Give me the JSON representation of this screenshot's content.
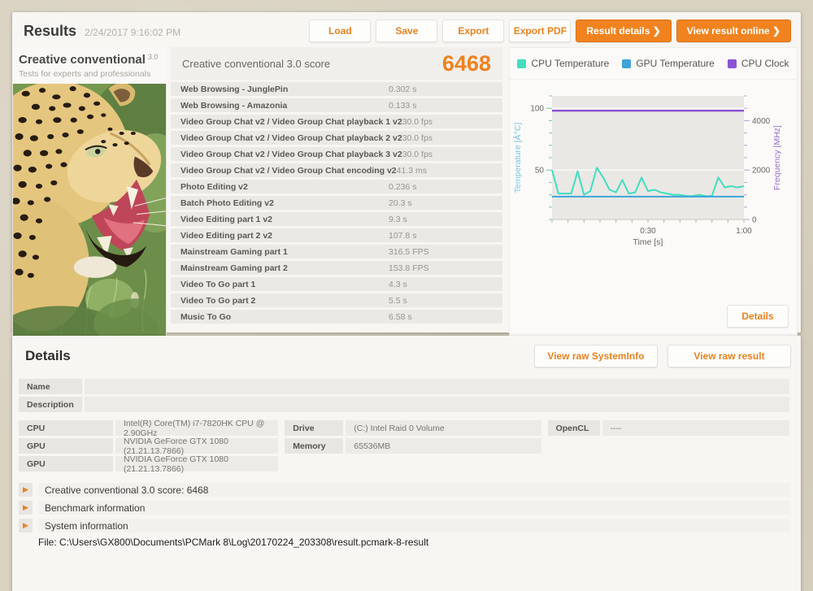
{
  "header": {
    "title": "Results",
    "date": "2/24/2017 9:16:02 PM",
    "buttons": [
      {
        "label": "Load",
        "variant": "light"
      },
      {
        "label": "Save",
        "variant": "light"
      },
      {
        "label": "Export",
        "variant": "light"
      },
      {
        "label": "Export PDF",
        "variant": "light"
      },
      {
        "label": "Result details ❯",
        "variant": "primary"
      },
      {
        "label": "View result online ❯",
        "variant": "primary"
      }
    ]
  },
  "test_panel": {
    "name": "Creative conventional",
    "version": "3.0",
    "subtitle": "Tests for experts and professionals"
  },
  "score_panel": {
    "title": "Creative conventional 3.0 score",
    "score": "6468",
    "rows": [
      {
        "label": "Web Browsing - JunglePin",
        "value": "0.302 s"
      },
      {
        "label": "Web Browsing - Amazonia",
        "value": "0.133 s"
      },
      {
        "label": "Video Group Chat v2 / Video Group Chat playback 1 v2",
        "value": "30.0 fps"
      },
      {
        "label": "Video Group Chat v2 / Video Group Chat playback 2 v2",
        "value": "30.0 fps"
      },
      {
        "label": "Video Group Chat v2 / Video Group Chat playback 3 v2",
        "value": "30.0 fps"
      },
      {
        "label": "Video Group Chat v2 / Video Group Chat encoding v2",
        "value": "41.3 ms"
      },
      {
        "label": "Photo Editing v2",
        "value": "0.236 s"
      },
      {
        "label": "Batch Photo Editing v2",
        "value": "20.3 s"
      },
      {
        "label": "Video Editing part 1 v2",
        "value": "9.3 s"
      },
      {
        "label": "Video Editing part 2 v2",
        "value": "107.8 s"
      },
      {
        "label": "Mainstream Gaming part 1",
        "value": "316.5 FPS"
      },
      {
        "label": "Mainstream Gaming part 2",
        "value": "153.8 FPS"
      },
      {
        "label": "Video To Go part 1",
        "value": "4.3 s"
      },
      {
        "label": "Video To Go part 2",
        "value": "5.5 s"
      },
      {
        "label": "Music To Go",
        "value": "6.58 s"
      }
    ]
  },
  "chart_panel": {
    "details_button": "Details"
  },
  "chart_data": {
    "type": "line",
    "xlabel": "Time [s]",
    "x_range": [
      0,
      60
    ],
    "x_ticks": [
      {
        "value": 30,
        "label": "0:30"
      },
      {
        "value": 60,
        "label": "1:00"
      }
    ],
    "x_minor_step": 5,
    "y_left": {
      "label": "Temperature [Â°C]",
      "range": [
        10,
        110
      ],
      "ticks": [
        50,
        100
      ],
      "minor_step": 10,
      "label_color": "#74c6e6",
      "tick_color": "#6cc9b0"
    },
    "y_right": {
      "label": "Frequency [MHz]",
      "range": [
        0,
        5000
      ],
      "ticks": [
        0,
        2000,
        4000
      ],
      "minor_step": 500,
      "label_color": "#9a70d0",
      "tick_color": "#b9a1d6"
    },
    "series": [
      {
        "name": "CPU Temperature",
        "axis": "left",
        "color": "#42ddc0",
        "x": [
          0,
          2,
          4,
          6,
          8,
          10,
          12,
          14,
          16,
          18,
          20,
          22,
          24,
          26,
          28,
          30,
          32,
          34,
          36,
          38,
          40,
          42,
          44,
          46,
          48,
          50,
          52,
          54,
          56,
          58,
          60
        ],
        "y": [
          50,
          31,
          31,
          31,
          49,
          30,
          33,
          52,
          44,
          34,
          32,
          42,
          31,
          32,
          44,
          33,
          34,
          32,
          31,
          30,
          30,
          29,
          29,
          30,
          29,
          29,
          44,
          36,
          37,
          36,
          37
        ]
      },
      {
        "name": "GPU Temperature",
        "axis": "left",
        "color": "#3fa3da",
        "x": [
          0,
          60
        ],
        "y": [
          28.5,
          28.5
        ]
      },
      {
        "name": "CPU Clock",
        "axis": "right",
        "color": "#8c52d6",
        "x": [
          0,
          60
        ],
        "y": [
          4400,
          4400
        ]
      }
    ],
    "legend_position": "top",
    "plot_bg": "#e9e8e4",
    "grid": true
  },
  "details_section": {
    "title": "Details",
    "buttons": [
      "View raw SystemInfo",
      "View raw result"
    ],
    "info_rows": [
      {
        "label": "Name",
        "value": ""
      },
      {
        "label": "Description",
        "value": ""
      }
    ],
    "spec_groups": [
      {
        "rows": [
          {
            "label": "CPU",
            "value": "Intel(R) Core(TM) i7-7820HK CPU @ 2.90GHz"
          },
          {
            "label": "GPU",
            "value": "NVIDIA GeForce GTX 1080 (21.21.13.7866)"
          },
          {
            "label": "GPU",
            "value": "NVIDIA GeForce GTX 1080 (21.21.13.7866)"
          }
        ]
      },
      {
        "rows": [
          {
            "label": "Drive",
            "value": "(C:) Intel Raid 0 Volume"
          },
          {
            "label": "Memory",
            "value": "65536MB"
          }
        ]
      },
      {
        "rows": [
          {
            "label": "OpenCL",
            "value": "----"
          }
        ]
      }
    ],
    "expandables": [
      "Creative conventional 3.0 score: 6468",
      "Benchmark information",
      "System information"
    ],
    "file_line": "File: C:\\Users\\GX800\\Documents\\PCMark 8\\Log\\20170224_203308\\result.pcmark-8-result"
  },
  "colors": {
    "accent_orange": "#ef8220",
    "page_background": "#d9d2c1"
  }
}
